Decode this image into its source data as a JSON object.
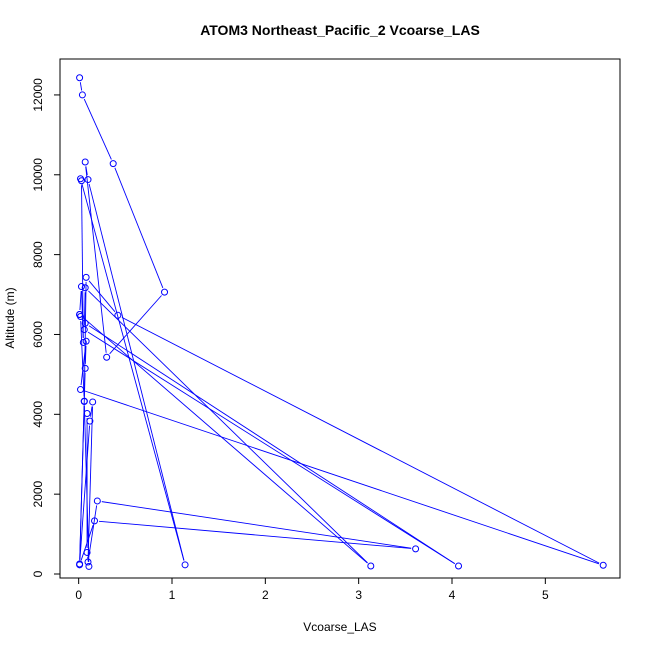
{
  "chart_data": {
    "type": "line",
    "title": "ATOM3 Northeast_Pacific_2 Vcoarse_LAS",
    "xlabel": "Vcoarse_LAS",
    "ylabel": "Altitude (m)",
    "xlim": [
      -0.2,
      5.8
    ],
    "ylim": [
      -100,
      12900
    ],
    "xticks": [
      0,
      1,
      2,
      3,
      4,
      5
    ],
    "yticks": [
      0,
      2000,
      4000,
      6000,
      8000,
      10000,
      12000
    ],
    "grid": false,
    "line_color": "#0000ff",
    "marker": "open-circle",
    "series": [
      {
        "x": [
          0.01,
          0.04,
          0.37,
          0.92,
          0.3,
          0.07,
          0.1,
          1.14,
          0.02,
          0.03,
          0.05,
          0.03,
          0.01,
          0.07,
          4.07,
          0.06,
          0.07,
          3.13,
          0.01,
          0.02,
          0.06,
          0.08,
          0.42,
          5.62,
          0.02,
          0.08,
          0.07,
          0.01,
          0.17,
          3.61,
          0.2,
          0.1,
          0.15,
          0.12,
          0.01,
          0.06,
          0.11,
          0.09,
          0.09
        ],
        "y": [
          12430,
          12000,
          10280,
          7060,
          5430,
          10320,
          9880,
          230,
          9900,
          9850,
          5800,
          7200,
          6500,
          6280,
          200,
          6120,
          7170,
          200,
          6500,
          6450,
          4330,
          7430,
          6480,
          220,
          4620,
          5830,
          5150,
          230,
          1330,
          630,
          1830,
          300,
          4310,
          3830,
          250,
          4320,
          190,
          540,
          4020
        ]
      }
    ]
  }
}
